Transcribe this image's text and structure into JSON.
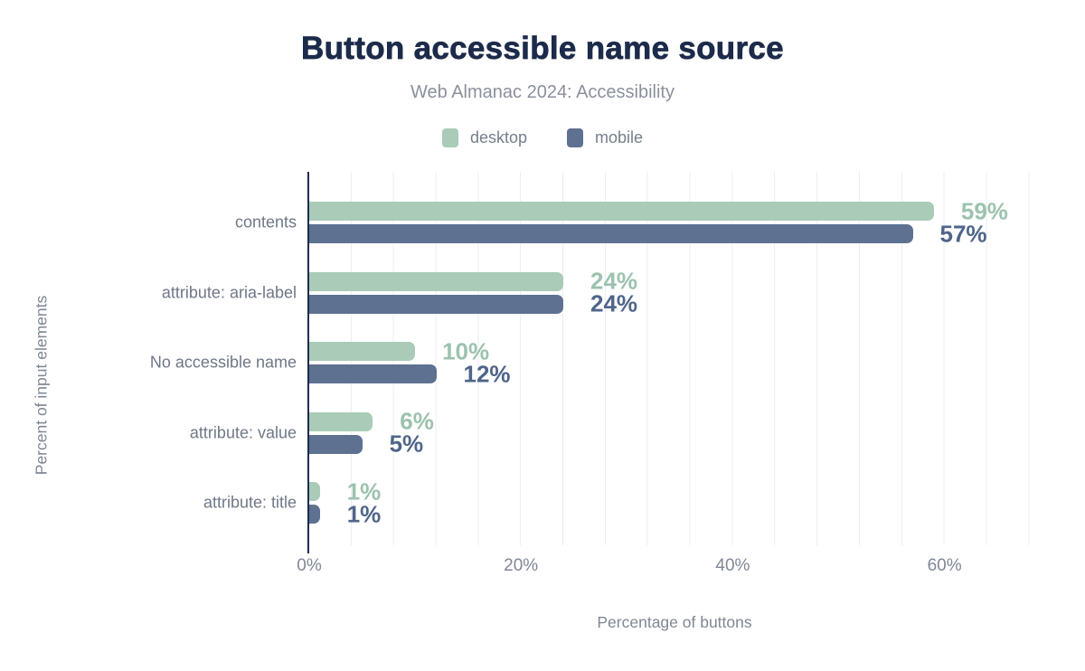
{
  "chart_data": {
    "type": "bar",
    "orientation": "horizontal",
    "title": "Button accessible name source",
    "subtitle": "Web Almanac 2024: Accessibility",
    "categories": [
      "contents",
      "attribute: aria-label",
      "No accessible name",
      "attribute: value",
      "attribute: title"
    ],
    "series": [
      {
        "name": "desktop",
        "color": "#a9cbb7",
        "label_color": "#9cc2ae",
        "values": [
          59,
          24,
          10,
          6,
          1
        ]
      },
      {
        "name": "mobile",
        "color": "#5e7191",
        "label_color": "#4f6589",
        "values": [
          57,
          24,
          12,
          5,
          1
        ]
      }
    ],
    "value_suffix": "%",
    "xlabel": "Percentage of buttons",
    "ylabel": "Percent of input elements",
    "x_ticks": [
      {
        "label": "0%",
        "value": 0
      },
      {
        "label": "20%",
        "value": 20
      },
      {
        "label": "40%",
        "value": 40
      },
      {
        "label": "60%",
        "value": 60
      }
    ],
    "xlim": [
      0,
      69
    ],
    "grid": {
      "vertical_minor_lines": true,
      "minor_step_percent": 4
    },
    "legend_position": "top"
  },
  "colors": {
    "background": "#ffffff",
    "title": "#1c2b4a",
    "subtitle": "#8a909c",
    "axis_line": "#1d2d4e",
    "gridline": "#ededf1",
    "tick_label": "#7f8795",
    "category_label": "#6f7787",
    "legend_label": "#767e8b"
  }
}
